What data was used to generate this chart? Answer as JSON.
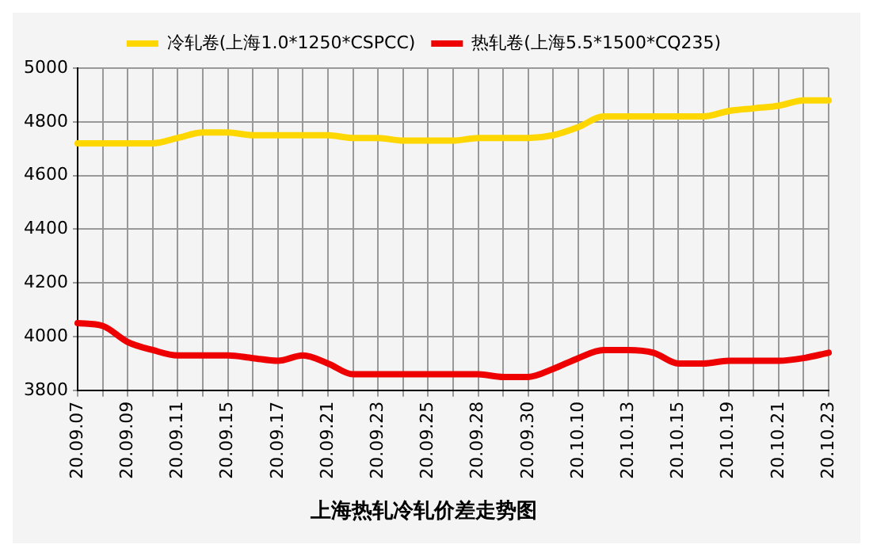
{
  "chart_data": {
    "type": "line",
    "title": "上海热轧冷轧价差走势图",
    "categories": [
      "20.09.07",
      null,
      "20.09.09",
      null,
      "20.09.11",
      null,
      "20.09.15",
      null,
      "20.09.17",
      null,
      "20.09.21",
      null,
      "20.09.23",
      null,
      "20.09.25",
      null,
      "20.09.28",
      null,
      "20.09.30",
      null,
      "20.10.10",
      null,
      "20.10.13",
      null,
      "20.10.15",
      null,
      "20.10.19",
      null,
      "20.10.21",
      null,
      "20.10.23"
    ],
    "series": [
      {
        "name": "冷轧卷(上海1.0*1250*CSPCC)",
        "color": "#ffd700",
        "values": [
          4720,
          4720,
          4720,
          4720,
          4740,
          4760,
          4760,
          4750,
          4750,
          4750,
          4750,
          4740,
          4740,
          4730,
          4730,
          4730,
          4740,
          4740,
          4740,
          4750,
          4780,
          4820,
          4820,
          4820,
          4820,
          4820,
          4840,
          4850,
          4860,
          4880,
          4880
        ]
      },
      {
        "name": "热轧卷(上海5.5*1500*CQ235)",
        "color": "#ee0000",
        "values": [
          4050,
          4040,
          3980,
          3950,
          3930,
          3930,
          3930,
          3920,
          3910,
          3930,
          3900,
          3860,
          3860,
          3860,
          3860,
          3860,
          3860,
          3850,
          3850,
          3880,
          3920,
          3950,
          3950,
          3940,
          3900,
          3900,
          3910,
          3910,
          3910,
          3920,
          3940
        ]
      }
    ],
    "ylim": [
      3800,
      5000
    ],
    "yticks": [
      3800,
      4000,
      4200,
      4400,
      4600,
      4800,
      5000
    ],
    "grid": true,
    "legend": "top",
    "marker": "none",
    "line_style": "solid"
  }
}
